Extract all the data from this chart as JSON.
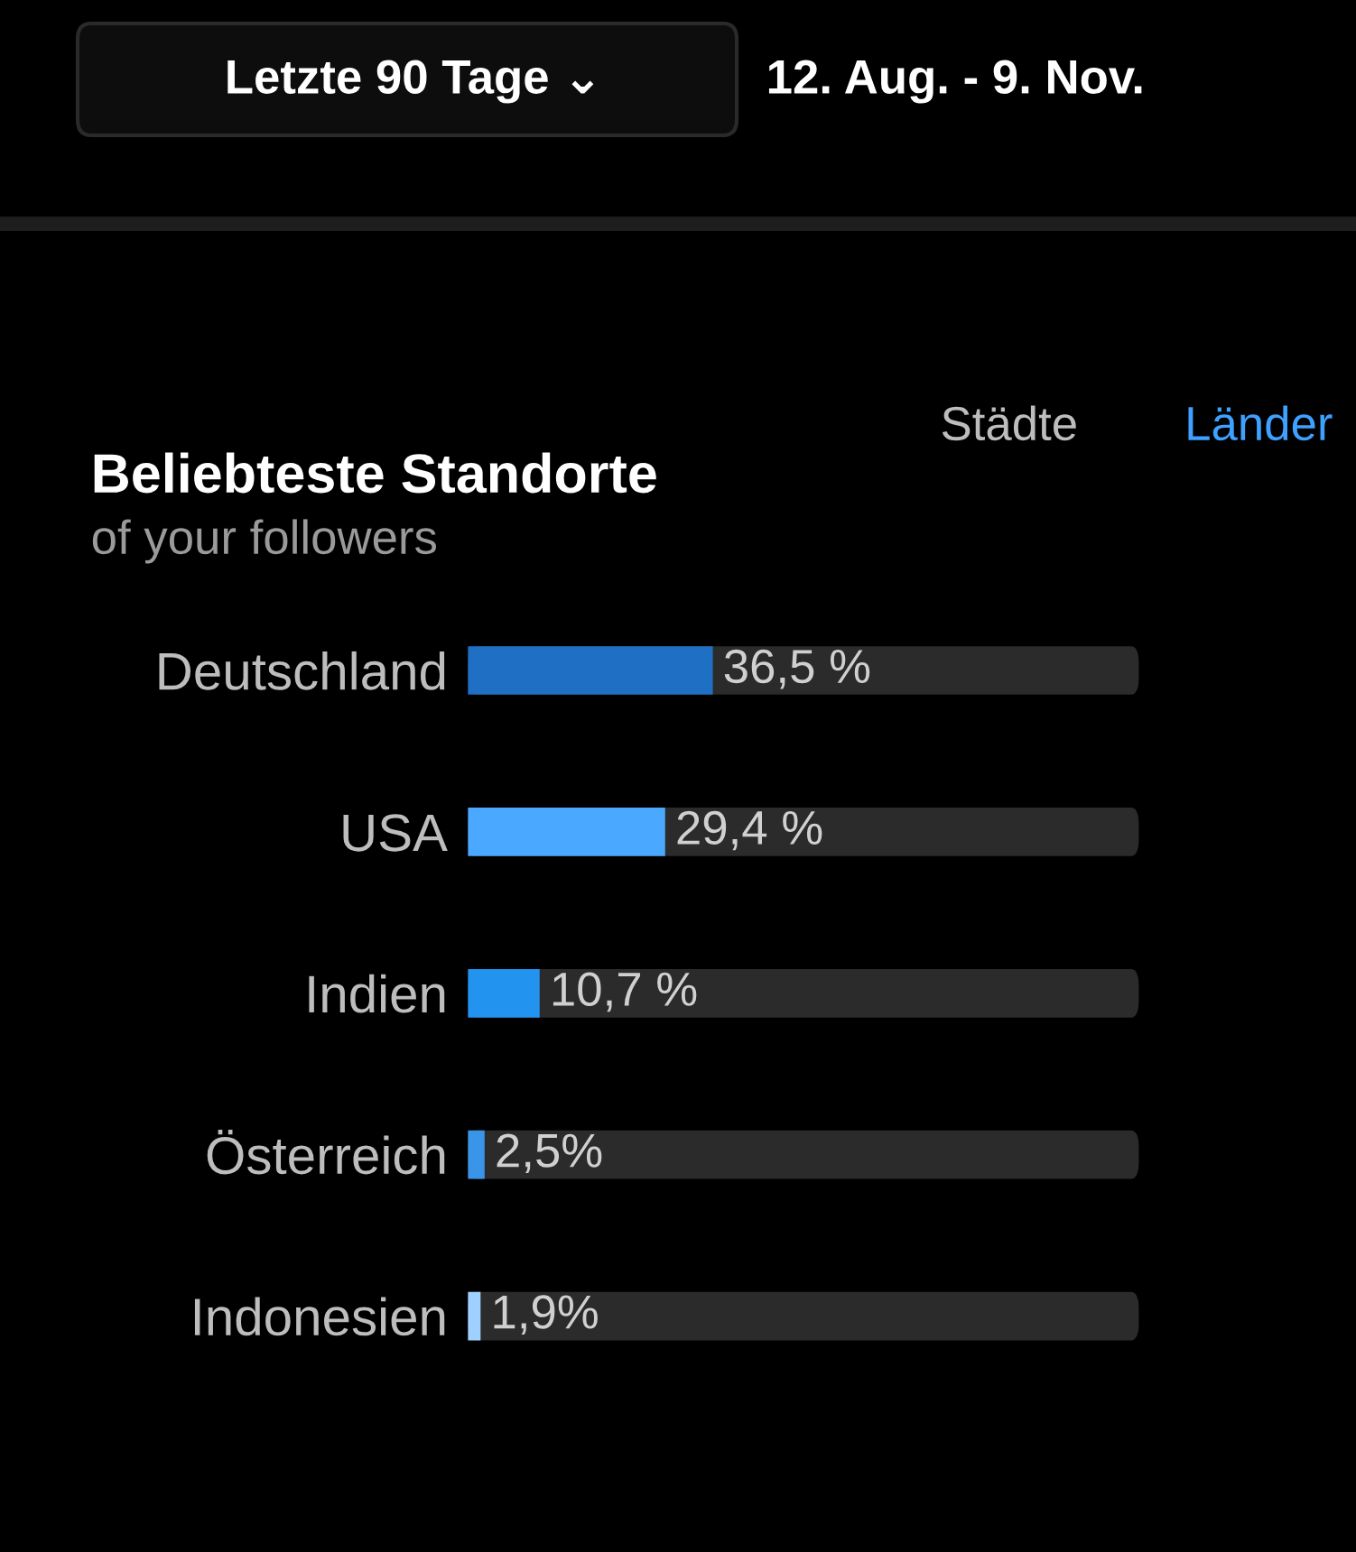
{
  "chart_data": {
    "type": "bar",
    "orientation": "horizontal",
    "title": "Beliebteste Standorte",
    "subtitle": "of your followers",
    "annotations": [
      "Letzte 90 Tage ⌄",
      "12. Aug. - 9. Nov.",
      "Städte",
      "Länder"
    ],
    "categories": [
      "Deutschland",
      "USA",
      "Indien",
      "Österreich",
      "Indonesien"
    ],
    "values": [
      36.5,
      29.4,
      10.7,
      2.5,
      1.9
    ],
    "colors": [
      "#1f6fc5",
      "#4aa8ff",
      "#2393f0",
      "#3a95e8",
      "#9fd0ff"
    ],
    "value_labels": [
      "36,5 %",
      "29,4 %",
      "10,7 %",
      "2,5%",
      "1,9%"
    ],
    "xlim": [
      0,
      100
    ],
    "tick_labels": "y",
    "grid": false,
    "legend": false
  }
}
